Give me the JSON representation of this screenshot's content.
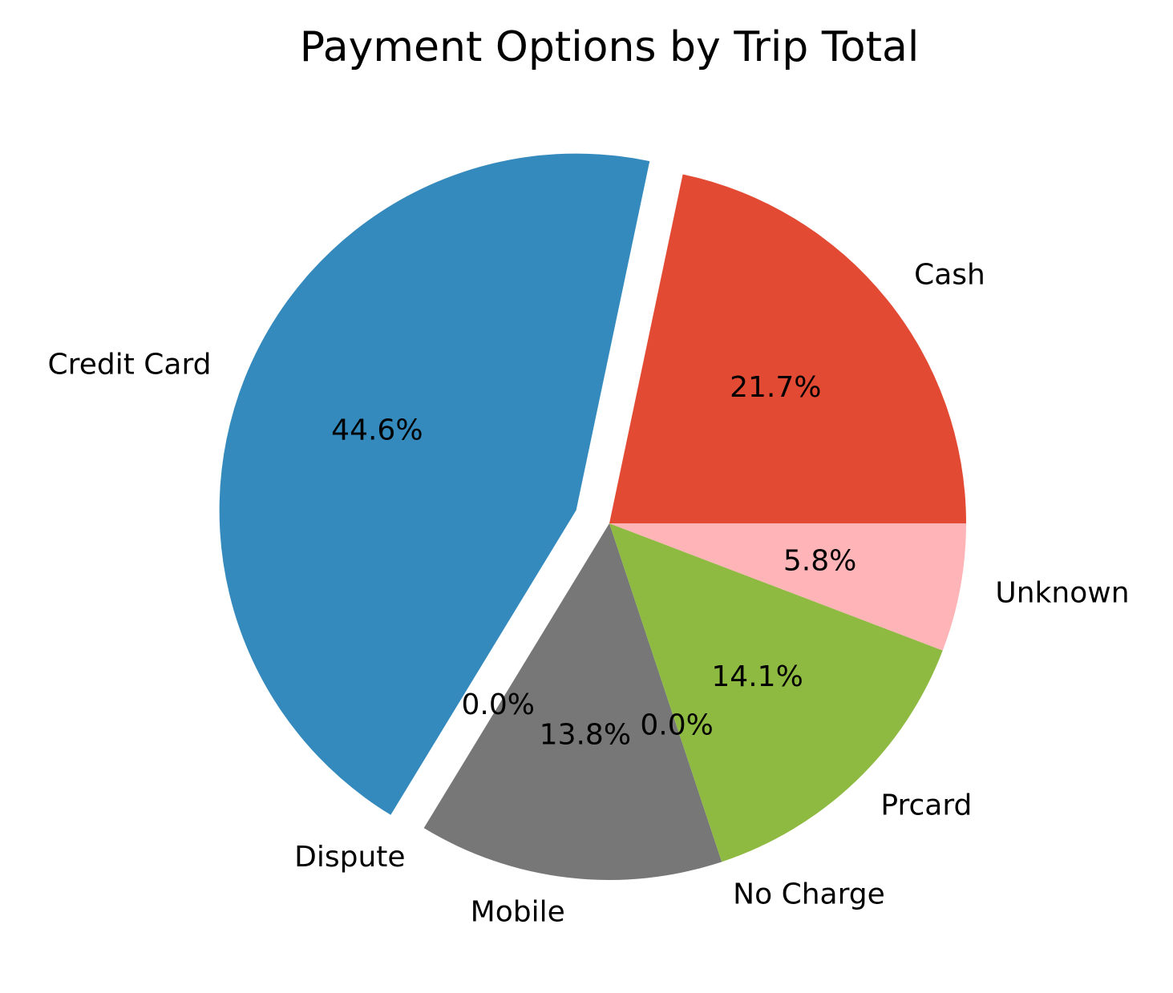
{
  "chart_data": {
    "type": "pie",
    "title": "Payment Options by Trip Total",
    "slices": [
      {
        "label": "Cash",
        "value": 21.7,
        "pct_label": "21.7%",
        "color": "#E24A33",
        "explode": false
      },
      {
        "label": "Credit Card",
        "value": 44.6,
        "pct_label": "44.6%",
        "color": "#348ABD",
        "explode": true
      },
      {
        "label": "Dispute",
        "value": 0.0,
        "pct_label": "0.0%",
        "color": "#988ED5",
        "explode": false
      },
      {
        "label": "Mobile",
        "value": 13.8,
        "pct_label": "13.8%",
        "color": "#777777",
        "explode": false
      },
      {
        "label": "No Charge",
        "value": 0.0,
        "pct_label": "0.0%",
        "color": "#FBC15E",
        "explode": false
      },
      {
        "label": "Prcard",
        "value": 14.1,
        "pct_label": "14.1%",
        "color": "#8EBA42",
        "explode": false
      },
      {
        "label": "Unknown",
        "value": 5.8,
        "pct_label": "5.8%",
        "color": "#FFB5B8",
        "explode": false
      }
    ],
    "start_angle": 0,
    "direction": "counterclockwise",
    "legend": "none"
  }
}
